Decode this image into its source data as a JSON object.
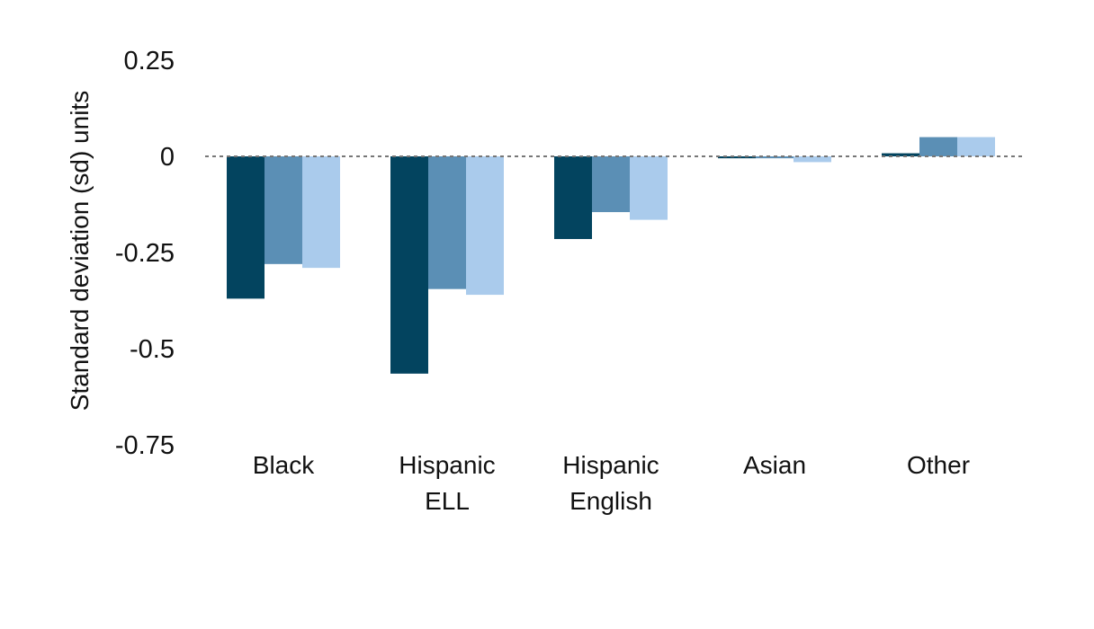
{
  "chart_data": {
    "type": "bar",
    "title": "",
    "xlabel": "",
    "ylabel": "Standard deviation (sd) units",
    "ylim": [
      -0.75,
      0.25
    ],
    "yticks": [
      0.25,
      0,
      -0.25,
      -0.5,
      -0.75
    ],
    "ytick_labels": [
      "0.25",
      "0",
      "-0.25",
      "-0.5",
      "-0.75"
    ],
    "grid": false,
    "zero_line": "dotted",
    "categories": [
      [
        "Black"
      ],
      [
        "Hispanic",
        "ELL"
      ],
      [
        "Hispanic",
        "English"
      ],
      [
        "Asian"
      ],
      [
        "Other"
      ]
    ],
    "series": [
      {
        "color": "#03445f",
        "values": [
          -0.37,
          -0.565,
          -0.215,
          -0.005,
          0.008
        ]
      },
      {
        "color": "#5b8fb5",
        "values": [
          -0.28,
          -0.345,
          -0.145,
          -0.005,
          0.05
        ]
      },
      {
        "color": "#aacbec",
        "values": [
          -0.29,
          -0.36,
          -0.165,
          -0.015,
          0.05
        ]
      }
    ]
  }
}
